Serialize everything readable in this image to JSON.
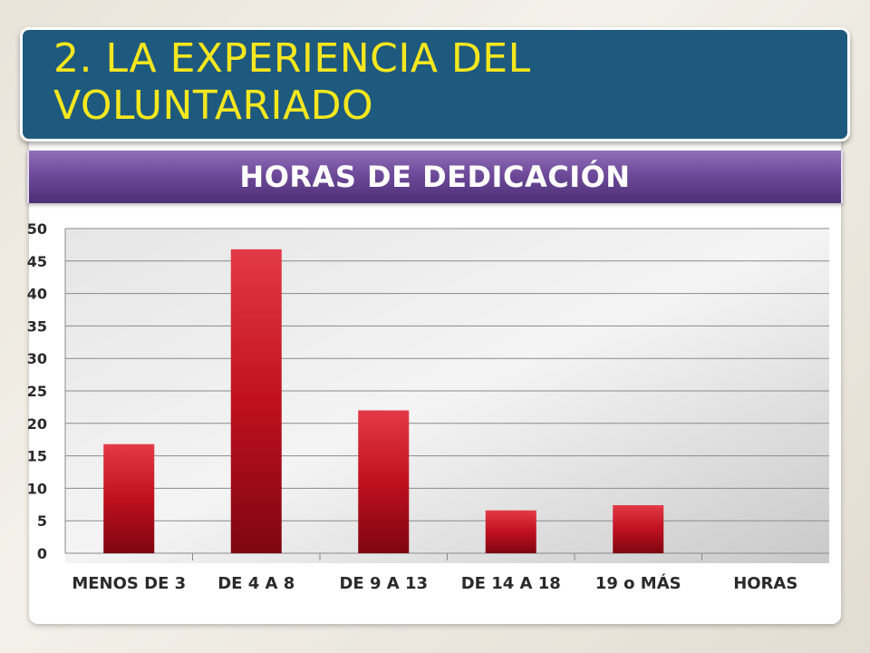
{
  "slide": {
    "title": "2. LA EXPERIENCIA DEL VOLUNTARIADO",
    "title_color": "#f6e71e",
    "title_bar_color": "#1e5a7e",
    "subtitle_bar_color": "#6e4a9a"
  },
  "chart_data": {
    "type": "bar",
    "title": "HORAS DE DEDICACIÓN",
    "categories": [
      "MENOS DE 3",
      "DE 4 A 8",
      "DE 9 A 13",
      "DE 14 A 18",
      "19 o MÁS",
      "HORAS"
    ],
    "values": [
      16.8,
      46.8,
      22,
      6.6,
      7.4,
      null
    ],
    "ylim": [
      0,
      50
    ],
    "yticks": [
      0,
      5,
      10,
      15,
      20,
      25,
      30,
      35,
      40,
      45,
      50
    ],
    "xlabel": "",
    "ylabel": "",
    "grid": true,
    "legend": "none",
    "bar_color": "#c0101f"
  }
}
